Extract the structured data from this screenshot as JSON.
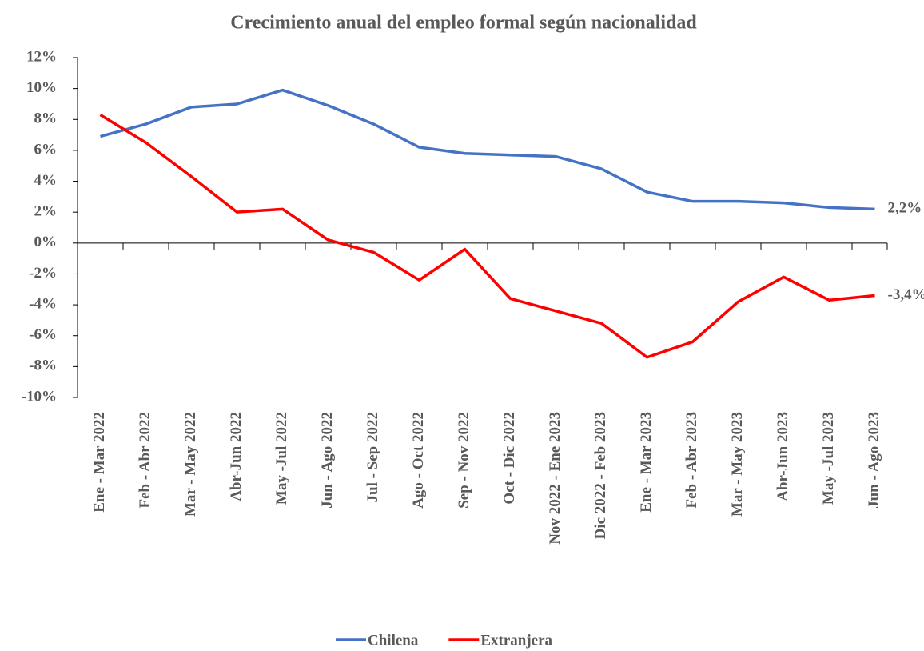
{
  "chart_data": {
    "type": "line",
    "title": "Crecimiento anual del empleo formal según nacionalidad",
    "categories": [
      "Ene - Mar 2022",
      "Feb - Abr 2022",
      "Mar - May 2022",
      "Abr-Jun 2022",
      "May -Jul 2022",
      "Jun - Ago 2022",
      "Jul - Sep 2022",
      "Ago - Oct 2022",
      "Sep - Nov 2022",
      "Oct - Dic 2022",
      "Nov 2022 - Ene 2023",
      "Dic 2022 - Feb 2023",
      "Ene - Mar 2023",
      "Feb - Abr 2023",
      "Mar - May 2023",
      "Abr-Jun 2023",
      "May -Jul 2023",
      "Jun - Ago 2023"
    ],
    "series": [
      {
        "name": "Chilena",
        "color": "#4472c4",
        "values": [
          6.9,
          7.7,
          8.8,
          9.0,
          9.9,
          8.9,
          7.7,
          6.2,
          5.8,
          5.7,
          5.6,
          4.8,
          3.3,
          2.7,
          2.7,
          2.6,
          2.3,
          2.2
        ],
        "value_labels": [
          null,
          null,
          null,
          null,
          null,
          null,
          null,
          null,
          null,
          null,
          null,
          null,
          null,
          null,
          null,
          null,
          null,
          "2,2%"
        ]
      },
      {
        "name": "Extranjera",
        "color": "#ff0000",
        "values": [
          8.3,
          6.5,
          4.3,
          2.0,
          2.2,
          0.2,
          -0.6,
          -2.4,
          -0.4,
          -3.6,
          -4.4,
          -5.2,
          -7.4,
          -6.4,
          -3.8,
          -2.2,
          -3.7,
          -3.4
        ],
        "value_labels": [
          null,
          null,
          null,
          null,
          null,
          null,
          null,
          null,
          null,
          null,
          null,
          null,
          null,
          null,
          null,
          null,
          null,
          "-3,4%"
        ]
      }
    ],
    "ylim": [
      -10,
      12
    ],
    "yticks": [
      {
        "value": -10,
        "label": "-10%"
      },
      {
        "value": -8,
        "label": "-8%"
      },
      {
        "value": -6,
        "label": "-6%"
      },
      {
        "value": -4,
        "label": "-4%"
      },
      {
        "value": -2,
        "label": "-2%"
      },
      {
        "value": 0,
        "label": "0%"
      },
      {
        "value": 2,
        "label": "2%"
      },
      {
        "value": 4,
        "label": "4%"
      },
      {
        "value": 6,
        "label": "6%"
      },
      {
        "value": 8,
        "label": "8%"
      },
      {
        "value": 10,
        "label": "10%"
      },
      {
        "value": 12,
        "label": "12%"
      }
    ],
    "grid": false,
    "legend": "bottom"
  }
}
